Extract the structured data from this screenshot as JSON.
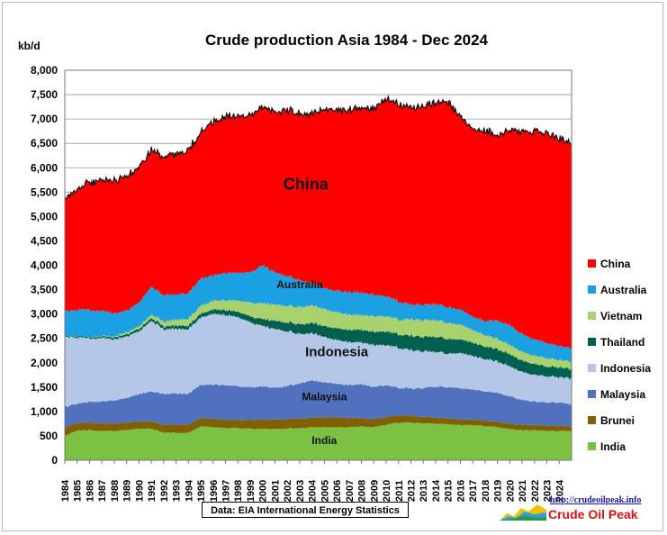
{
  "chart_data": {
    "type": "area",
    "stacked": true,
    "title": "Crude production Asia 1984 - Dec 2024",
    "ylabel": "kb/d",
    "xlabel": "",
    "ylim": [
      0,
      8000
    ],
    "yticks": [
      "0",
      "500",
      "1,000",
      "1,500",
      "2,000",
      "2,500",
      "3,000",
      "3,500",
      "4,000",
      "4,500",
      "5,000",
      "5,500",
      "6,000",
      "6,500",
      "7,000",
      "7,500",
      "8,000"
    ],
    "ytick_values": [
      0,
      500,
      1000,
      1500,
      2000,
      2500,
      3000,
      3500,
      4000,
      4500,
      5000,
      5500,
      6000,
      6500,
      7000,
      7500,
      8000
    ],
    "xlim": [
      1984,
      2025
    ],
    "xticks": [
      "1984",
      "1985",
      "1986",
      "1987",
      "1988",
      "1989",
      "1990",
      "1991",
      "1992",
      "1993",
      "1994",
      "1995",
      "1996",
      "1997",
      "1998",
      "1999",
      "2000",
      "2001",
      "2002",
      "2003",
      "2004",
      "2005",
      "2006",
      "2007",
      "2008",
      "2009",
      "2010",
      "2011",
      "2012",
      "2013",
      "2014",
      "2015",
      "2016",
      "2017",
      "2018",
      "2019",
      "2020",
      "2021",
      "2022",
      "2023",
      "2024"
    ],
    "grid": true,
    "legend": "right",
    "x": [
      1984,
      1985,
      1986,
      1987,
      1988,
      1989,
      1990,
      1991,
      1992,
      1993,
      1994,
      1995,
      1996,
      1997,
      1998,
      1999,
      2000,
      2001,
      2002,
      2003,
      2004,
      2005,
      2006,
      2007,
      2008,
      2009,
      2010,
      2011,
      2012,
      2013,
      2014,
      2015,
      2016,
      2017,
      2018,
      2019,
      2020,
      2021,
      2022,
      2023,
      2024,
      2025
    ],
    "series": [
      {
        "name": "India",
        "color": "#7dc142",
        "values": [
          500,
          610,
          620,
          600,
          600,
          620,
          650,
          650,
          570,
          560,
          560,
          700,
          680,
          660,
          660,
          650,
          640,
          640,
          650,
          660,
          680,
          680,
          680,
          680,
          690,
          680,
          730,
          770,
          770,
          760,
          750,
          740,
          720,
          720,
          700,
          680,
          640,
          620,
          610,
          600,
          600,
          600
        ]
      },
      {
        "name": "Brunei",
        "color": "#806000",
        "values": [
          170,
          150,
          150,
          150,
          150,
          150,
          150,
          150,
          160,
          170,
          170,
          170,
          170,
          170,
          160,
          180,
          190,
          190,
          190,
          200,
          200,
          200,
          210,
          190,
          170,
          160,
          160,
          150,
          140,
          130,
          130,
          120,
          120,
          110,
          110,
          110,
          110,
          110,
          110,
          110,
          100,
          100
        ]
      },
      {
        "name": "Malaysia",
        "color": "#4f71be",
        "values": [
          420,
          400,
          430,
          450,
          480,
          510,
          560,
          610,
          630,
          640,
          630,
          680,
          700,
          710,
          700,
          660,
          680,
          650,
          680,
          720,
          760,
          720,
          680,
          680,
          690,
          660,
          650,
          560,
          560,
          590,
          630,
          640,
          640,
          620,
          600,
          600,
          560,
          510,
          480,
          480,
          480,
          450
        ]
      },
      {
        "name": "Indonesia",
        "color": "#b4c7e7",
        "values": [
          1450,
          1350,
          1300,
          1310,
          1260,
          1260,
          1290,
          1450,
          1330,
          1320,
          1330,
          1380,
          1450,
          1440,
          1420,
          1330,
          1250,
          1210,
          1130,
          1020,
          960,
          940,
          900,
          870,
          860,
          860,
          830,
          820,
          790,
          750,
          720,
          700,
          720,
          690,
          660,
          640,
          620,
          580,
          550,
          540,
          530,
          520
        ]
      },
      {
        "name": "Thailand",
        "color": "#006050",
        "values": [
          20,
          20,
          25,
          30,
          40,
          45,
          50,
          55,
          60,
          65,
          70,
          80,
          90,
          100,
          110,
          120,
          140,
          170,
          180,
          200,
          210,
          220,
          240,
          250,
          260,
          270,
          280,
          280,
          290,
          300,
          310,
          300,
          280,
          270,
          260,
          250,
          250,
          230,
          220,
          200,
          200,
          190
        ]
      },
      {
        "name": "Vietnam",
        "color": "#a9d16d",
        "values": [
          0,
          0,
          5,
          10,
          20,
          40,
          50,
          70,
          100,
          120,
          140,
          160,
          180,
          200,
          230,
          280,
          320,
          330,
          340,
          350,
          360,
          350,
          330,
          310,
          300,
          320,
          310,
          300,
          340,
          340,
          340,
          330,
          300,
          260,
          230,
          210,
          190,
          180,
          170,
          170,
          150,
          150
        ]
      },
      {
        "name": "Australia",
        "color": "#1ba1e2",
        "values": [
          500,
          550,
          550,
          520,
          470,
          440,
          490,
          570,
          540,
          520,
          530,
          560,
          520,
          560,
          570,
          620,
          780,
          660,
          610,
          550,
          460,
          430,
          440,
          460,
          460,
          440,
          420,
          370,
          310,
          310,
          330,
          320,
          310,
          280,
          290,
          380,
          400,
          360,
          330,
          310,
          290,
          280
        ]
      },
      {
        "name": "China",
        "color": "#ff0000",
        "values": [
          2290,
          2500,
          2600,
          2680,
          2720,
          2750,
          2770,
          2810,
          2830,
          2870,
          2930,
          2980,
          3150,
          3210,
          3210,
          3200,
          3260,
          3300,
          3400,
          3420,
          3480,
          3660,
          3690,
          3740,
          3810,
          3790,
          4060,
          4060,
          4030,
          4070,
          4130,
          4210,
          3950,
          3840,
          3900,
          3790,
          3990,
          4160,
          4270,
          4300,
          4250,
          4200
        ]
      }
    ],
    "annotations": [
      {
        "text": "China",
        "x": 2003.5,
        "y": 5550,
        "size": "large"
      },
      {
        "text": "Australia",
        "x": 2003,
        "y": 3530,
        "size": "small"
      },
      {
        "text": "Indonesia",
        "x": 2006,
        "y": 2130,
        "size": "medium"
      },
      {
        "text": "Malaysia",
        "x": 2005,
        "y": 1230,
        "size": "small"
      },
      {
        "text": "India",
        "x": 2005,
        "y": 330,
        "size": "small"
      }
    ]
  },
  "source_note": "Data: EIA International Energy Statistics",
  "brand": {
    "url": "http://crudeoilpeak.info",
    "name": "Crude Oil Peak"
  }
}
